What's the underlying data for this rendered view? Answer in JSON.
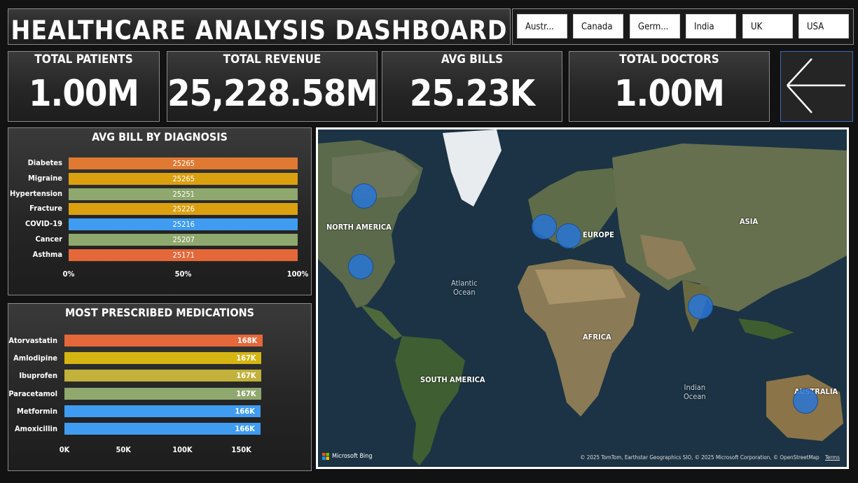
{
  "header": {
    "title": "HEALTHCARE ANALYSIS DASHBOARD"
  },
  "slicer": {
    "countries": [
      "Austr...",
      "Canada",
      "Germ...",
      "India",
      "UK",
      "USA"
    ]
  },
  "kpis": [
    {
      "label": "TOTAL PATIENTS",
      "value": "1.00M"
    },
    {
      "label": "TOTAL REVENUE",
      "value": "25,228.58M"
    },
    {
      "label": "AVG BILLS",
      "value": "25.23K"
    },
    {
      "label": "TOTAL DOCTORS",
      "value": "1.00M"
    }
  ],
  "colors": {
    "orange": "#e07a32",
    "gold": "#dba010",
    "sage": "#8fa86e",
    "blue": "#3f9cf0",
    "red_orange": "#e4683a",
    "yellow": "#d4b512",
    "olive": "#c2b13a"
  },
  "chart_data": [
    {
      "type": "bar",
      "orientation": "horizontal",
      "title": "AVG BILL BY DIAGNOSIS",
      "categories": [
        "Diabetes",
        "Migraine",
        "Hypertension",
        "Fracture",
        "COVID-19",
        "Cancer",
        "Asthma"
      ],
      "values": [
        25265,
        25265,
        25251,
        25226,
        25216,
        25207,
        25171
      ],
      "data_labels": [
        "25265",
        "25265",
        "25251",
        "25226",
        "25216",
        "25207",
        "25171"
      ],
      "bar_colors": [
        "#e07a32",
        "#dba010",
        "#8fa86e",
        "#dba010",
        "#3f9cf0",
        "#8fa86e",
        "#e4683a"
      ],
      "xticks": [
        "0%",
        "50%",
        "100%"
      ],
      "note": "100% stacked"
    },
    {
      "type": "bar",
      "orientation": "horizontal",
      "title": "MOST PRESCRIBED MEDICATIONS",
      "categories": [
        "Atorvastatin",
        "Amlodipine",
        "Ibuprofen",
        "Paracetamol",
        "Metformin",
        "Amoxicillin"
      ],
      "values": [
        168000,
        167000,
        167000,
        167000,
        166000,
        166000
      ],
      "data_labels": [
        "168K",
        "167K",
        "167K",
        "167K",
        "166K",
        "166K"
      ],
      "bar_colors": [
        "#e4683a",
        "#d4b512",
        "#c2b13a",
        "#8fa86e",
        "#3f9cf0",
        "#3f9cf0"
      ],
      "xticks": [
        "0K",
        "50K",
        "100K",
        "150K"
      ],
      "xlim": [
        0,
        170000
      ]
    }
  ],
  "map": {
    "labels": [
      "NORTH AMERICA",
      "EUROPE",
      "ASIA",
      "AFRICA",
      "SOUTH AMERICA",
      "AUSTRALIA"
    ],
    "oceans": [
      "Atlantic\nOcean",
      "Indian\nOcean"
    ],
    "bing": "Microsoft Bing",
    "attribution": "© 2025 TomTom, Earthstar Geographics SIO, © 2025 Microsoft Corporation, © OpenStreetMap",
    "terms": "Terms"
  }
}
